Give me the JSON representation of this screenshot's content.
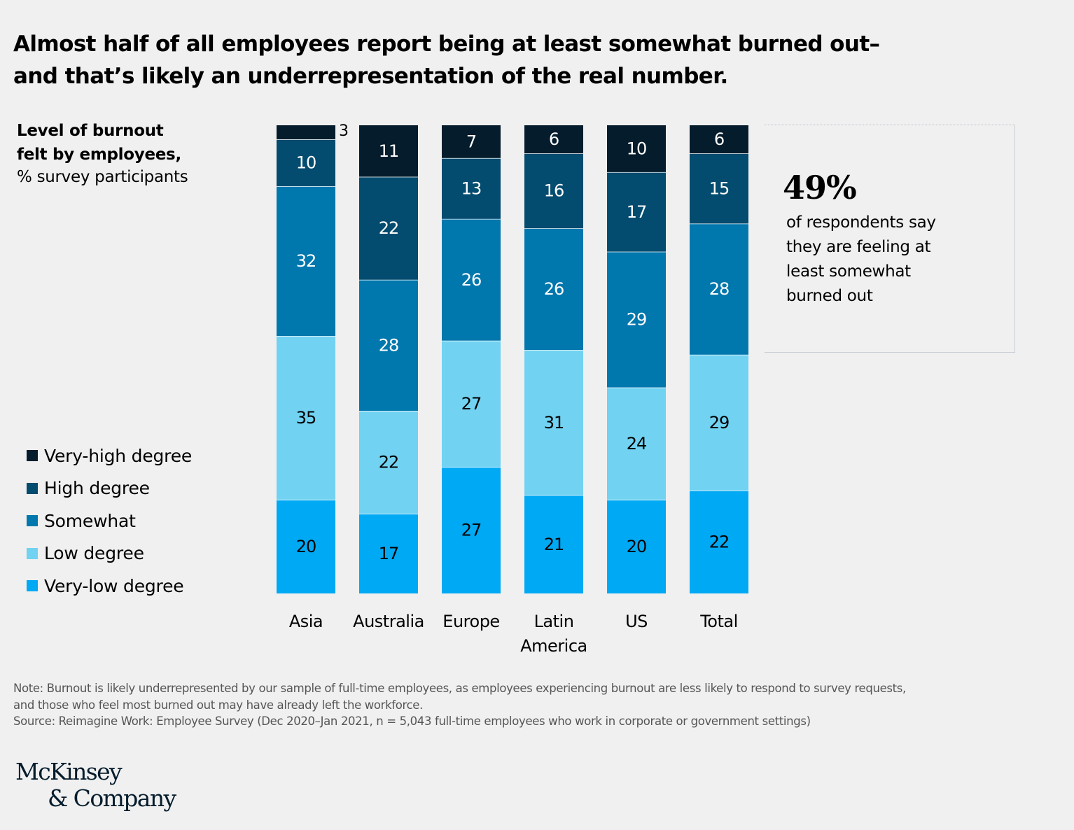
{
  "title": {
    "line1": "Almost half of all employees report being at least somewhat burned out–",
    "line2": "and that’s likely an underrepresentation of the real number."
  },
  "subtitle": {
    "bold_line1": "Level of burnout",
    "bold_line2": "felt by employees,",
    "normal": "% survey participants"
  },
  "callout": {
    "value": "49%",
    "line1": "of respondents say",
    "line2": "they are feeling at",
    "line3": "least somewhat",
    "line4": "burned out"
  },
  "note": {
    "line1": "Note: Burnout is likely underrepresented by our sample of full-time employees, as employees experiencing burnout are less likely to respond to survey requests,",
    "line2": "and those who feel most burned out may have already left the workforce.",
    "line3": "Source: Reimagine Work: Employee Survey (Dec 2020–Jan 2021, n = 5,043 full-time employees who work in corporate or government settings)"
  },
  "logo": {
    "line1": "McKinsey",
    "line2": "& Company"
  },
  "chart_data": {
    "type": "bar",
    "stacked": true,
    "orientation": "vertical",
    "title": "Level of burnout felt by employees, % survey participants",
    "xlabel": "",
    "ylabel": "% survey participants",
    "ylim": [
      0,
      100
    ],
    "grid": false,
    "legend_position": "left",
    "categories": [
      "Asia",
      "Australia",
      "Europe",
      "Latin America",
      "US",
      "Total"
    ],
    "category_label_lines": [
      [
        "Asia"
      ],
      [
        "Australia"
      ],
      [
        "Europe"
      ],
      [
        "Latin",
        "America"
      ],
      [
        "US"
      ],
      [
        "Total"
      ]
    ],
    "series": [
      {
        "name": "Very-low degree",
        "color": "#00a9f4",
        "label_color": "#000000",
        "values": [
          20,
          17,
          27,
          21,
          20,
          22
        ]
      },
      {
        "name": "Low degree",
        "color": "#71d2f1",
        "label_color": "#000000",
        "values": [
          35,
          22,
          27,
          31,
          24,
          29
        ]
      },
      {
        "name": "Somewhat",
        "color": "#0077ad",
        "label_color": "#ffffff",
        "values": [
          32,
          28,
          26,
          26,
          29,
          28
        ]
      },
      {
        "name": "High degree",
        "color": "#034b6f",
        "label_color": "#ffffff",
        "values": [
          10,
          22,
          13,
          16,
          17,
          15
        ]
      },
      {
        "name": "Very-high degree",
        "color": "#051c2c",
        "label_color": "#ffffff",
        "values": [
          3,
          11,
          7,
          6,
          10,
          6
        ]
      }
    ],
    "legend_order": [
      "Very-high degree",
      "High degree",
      "Somewhat",
      "Low degree",
      "Very-low degree"
    ],
    "outside_labels": [
      {
        "category": "Asia",
        "series": "Very-high degree"
      }
    ]
  }
}
